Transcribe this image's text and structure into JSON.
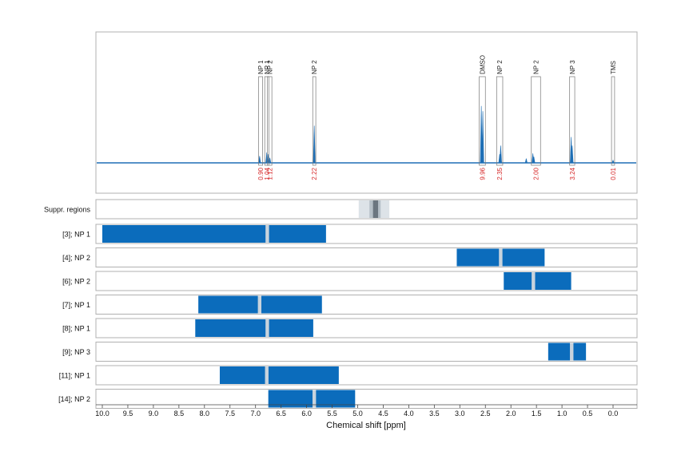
{
  "chart_data": {
    "type": "nmr-spectrum-with-region-bars",
    "xlabel": "Chemical shift [ppm]",
    "xlim": [
      10.0,
      0.0
    ],
    "x_reversed": true,
    "x_ticks": [
      10.0,
      9.5,
      9.0,
      8.5,
      8.0,
      7.5,
      7.0,
      6.5,
      6.0,
      5.5,
      5.0,
      4.5,
      4.0,
      3.5,
      3.0,
      2.5,
      2.0,
      1.5,
      1.0,
      0.5,
      0.0
    ],
    "x_tick_labels": [
      "10.0",
      "9.5",
      "9.0",
      "8.5",
      "8.0",
      "7.5",
      "7.0",
      "6.5",
      "6.0",
      "5.5",
      "5.0",
      "4.5",
      "4.0",
      "3.5",
      "3.0",
      "2.5",
      "2.0",
      "1.5",
      "1.0",
      "0.5",
      "0.0"
    ],
    "grid": true,
    "spectrum": {
      "color": "#1f6fb5",
      "peaks": [
        {
          "x": 6.92,
          "h": 0.08
        },
        {
          "x": 6.78,
          "h": 0.12
        },
        {
          "x": 6.75,
          "h": 0.1
        },
        {
          "x": 6.72,
          "h": 0.06
        },
        {
          "x": 5.85,
          "h": 0.43
        },
        {
          "x": 2.58,
          "h": 0.66
        },
        {
          "x": 2.55,
          "h": 0.6
        },
        {
          "x": 2.22,
          "h": 0.1
        },
        {
          "x": 2.2,
          "h": 0.2
        },
        {
          "x": 1.7,
          "h": 0.05
        },
        {
          "x": 1.57,
          "h": 0.11
        },
        {
          "x": 1.55,
          "h": 0.07
        },
        {
          "x": 0.82,
          "h": 0.3
        },
        {
          "x": 0.8,
          "h": 0.2
        },
        {
          "x": 0.0,
          "h": 0.03
        }
      ],
      "integration_regions": [
        {
          "label": "NP 1",
          "from": 6.94,
          "to": 6.86,
          "value": "0.90"
        },
        {
          "label": "NP 1",
          "from": 6.82,
          "to": 6.74,
          "value": "1.04"
        },
        {
          "label": "NP 2",
          "from": 6.77,
          "to": 6.68,
          "value": "1.12"
        },
        {
          "label": "NP 2",
          "from": 5.88,
          "to": 5.82,
          "value": "2.22"
        },
        {
          "label": "DMSO",
          "from": 2.62,
          "to": 2.5,
          "value": "9.96"
        },
        {
          "label": "NP 2",
          "from": 2.28,
          "to": 2.16,
          "value": "2.35"
        },
        {
          "label": "NP 2",
          "from": 1.6,
          "to": 1.42,
          "value": "2.00"
        },
        {
          "label": "NP 3",
          "from": 0.85,
          "to": 0.75,
          "value": "3.24"
        },
        {
          "label": "TMS",
          "from": 0.03,
          "to": -0.03,
          "value": "0.01"
        }
      ]
    },
    "suppressed_regions": {
      "label": "Suppr. regions",
      "outer": [
        4.98,
        4.38
      ],
      "inner": [
        4.77,
        4.55
      ],
      "core": [
        4.7,
        4.6
      ]
    },
    "region_rows": [
      {
        "label": "[3]; NP 1",
        "from": 10.0,
        "to": 5.62,
        "marker": 6.77
      },
      {
        "label": "[4]; NP 2",
        "from": 3.06,
        "to": 1.34,
        "marker": 2.2
      },
      {
        "label": "[6]; NP 2",
        "from": 2.14,
        "to": 0.82,
        "marker": 1.56
      },
      {
        "label": "[7]; NP 1",
        "from": 8.12,
        "to": 5.7,
        "marker": 6.92
      },
      {
        "label": "[8]; NP 1",
        "from": 8.18,
        "to": 5.87,
        "marker": 6.77
      },
      {
        "label": "[9]; NP 3",
        "from": 1.27,
        "to": 0.53,
        "marker": 0.81
      },
      {
        "label": "[11]; NP 1",
        "from": 7.7,
        "to": 5.37,
        "marker": 6.78
      },
      {
        "label": "[14]; NP 2",
        "from": 6.75,
        "to": 5.05,
        "marker": 5.85
      }
    ],
    "colors": {
      "bar": "#0b6cbc",
      "marker": "#c8d3dd",
      "integral_text": "#d62728",
      "grid": "#c8c8c8",
      "frame": "#b0b0b0",
      "suppr_outer": "#dde3e8",
      "suppr_inner": "#b6c0c8",
      "suppr_core": "#6b7680"
    }
  }
}
